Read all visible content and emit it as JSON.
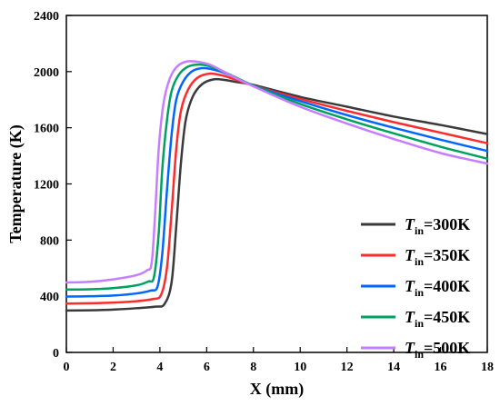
{
  "chart_data": {
    "type": "line",
    "xlabel": "X (mm)",
    "ylabel": "Temperature (K)",
    "xlim": [
      0,
      18
    ],
    "ylim": [
      0,
      2400
    ],
    "xticks": [
      0,
      2,
      4,
      6,
      8,
      10,
      12,
      14,
      16,
      18
    ],
    "yticks": [
      0,
      400,
      800,
      1200,
      1600,
      2000,
      2400
    ],
    "grid": false,
    "legend_position": "lower-right",
    "series": [
      {
        "name": "Tin=300K",
        "name_main": "T",
        "name_sub": "in",
        "name_value": "=300K",
        "color": "#3a3a3a",
        "points": [
          [
            0,
            298
          ],
          [
            1,
            300
          ],
          [
            2,
            305
          ],
          [
            3,
            315
          ],
          [
            3.8,
            326
          ],
          [
            4.2,
            345
          ],
          [
            4.5,
            500
          ],
          [
            4.7,
            900
          ],
          [
            4.9,
            1350
          ],
          [
            5.1,
            1650
          ],
          [
            5.4,
            1820
          ],
          [
            5.8,
            1910
          ],
          [
            6.3,
            1945
          ],
          [
            6.8,
            1940
          ],
          [
            7.3,
            1925
          ],
          [
            8,
            1905
          ],
          [
            10,
            1820
          ],
          [
            12,
            1750
          ],
          [
            14,
            1680
          ],
          [
            16,
            1620
          ],
          [
            18,
            1555
          ]
        ]
      },
      {
        "name": "Tin=350K",
        "name_main": "T",
        "name_sub": "in",
        "name_value": "=350K",
        "color": "#ff2a2a",
        "points": [
          [
            0,
            348
          ],
          [
            1,
            350
          ],
          [
            2,
            355
          ],
          [
            3,
            365
          ],
          [
            3.7,
            380
          ],
          [
            4.05,
            410
          ],
          [
            4.3,
            600
          ],
          [
            4.5,
            1000
          ],
          [
            4.7,
            1450
          ],
          [
            4.9,
            1720
          ],
          [
            5.2,
            1870
          ],
          [
            5.6,
            1955
          ],
          [
            6.1,
            1985
          ],
          [
            6.6,
            1975
          ],
          [
            7.2,
            1945
          ],
          [
            8,
            1900
          ],
          [
            10,
            1805
          ],
          [
            12,
            1720
          ],
          [
            14,
            1640
          ],
          [
            16,
            1565
          ],
          [
            18,
            1490
          ]
        ]
      },
      {
        "name": "Tin=400K",
        "name_main": "T",
        "name_sub": "in",
        "name_value": "=400K",
        "color": "#0066ff",
        "points": [
          [
            0,
            398
          ],
          [
            1,
            400
          ],
          [
            2,
            405
          ],
          [
            3,
            420
          ],
          [
            3.6,
            440
          ],
          [
            3.9,
            470
          ],
          [
            4.1,
            700
          ],
          [
            4.3,
            1150
          ],
          [
            4.5,
            1550
          ],
          [
            4.7,
            1800
          ],
          [
            5,
            1930
          ],
          [
            5.4,
            2005
          ],
          [
            5.9,
            2025
          ],
          [
            6.5,
            2005
          ],
          [
            7.2,
            1960
          ],
          [
            8,
            1900
          ],
          [
            10,
            1790
          ],
          [
            12,
            1690
          ],
          [
            14,
            1600
          ],
          [
            16,
            1515
          ],
          [
            18,
            1435
          ]
        ]
      },
      {
        "name": "Tin=450K",
        "name_main": "T",
        "name_sub": "in",
        "name_value": "=450K",
        "color": "#00a060",
        "points": [
          [
            0,
            448
          ],
          [
            1,
            450
          ],
          [
            2,
            458
          ],
          [
            3,
            478
          ],
          [
            3.5,
            505
          ],
          [
            3.75,
            540
          ],
          [
            3.95,
            850
          ],
          [
            4.1,
            1300
          ],
          [
            4.3,
            1650
          ],
          [
            4.5,
            1860
          ],
          [
            4.8,
            1975
          ],
          [
            5.2,
            2035
          ],
          [
            5.7,
            2050
          ],
          [
            6.3,
            2030
          ],
          [
            7.1,
            1970
          ],
          [
            8,
            1900
          ],
          [
            10,
            1770
          ],
          [
            12,
            1660
          ],
          [
            14,
            1560
          ],
          [
            16,
            1465
          ],
          [
            18,
            1380
          ]
        ]
      },
      {
        "name": "Tin=500K",
        "name_main": "T",
        "name_sub": "in",
        "name_value": "=500K",
        "color": "#c77dff",
        "points": [
          [
            0,
            498
          ],
          [
            1,
            503
          ],
          [
            2,
            520
          ],
          [
            3,
            550
          ],
          [
            3.45,
            585
          ],
          [
            3.65,
            640
          ],
          [
            3.8,
            1000
          ],
          [
            3.95,
            1450
          ],
          [
            4.15,
            1770
          ],
          [
            4.4,
            1940
          ],
          [
            4.7,
            2030
          ],
          [
            5.1,
            2070
          ],
          [
            5.6,
            2070
          ],
          [
            6.2,
            2045
          ],
          [
            7,
            1975
          ],
          [
            8,
            1895
          ],
          [
            10,
            1750
          ],
          [
            12,
            1630
          ],
          [
            14,
            1520
          ],
          [
            16,
            1420
          ],
          [
            18,
            1345
          ]
        ]
      }
    ]
  }
}
